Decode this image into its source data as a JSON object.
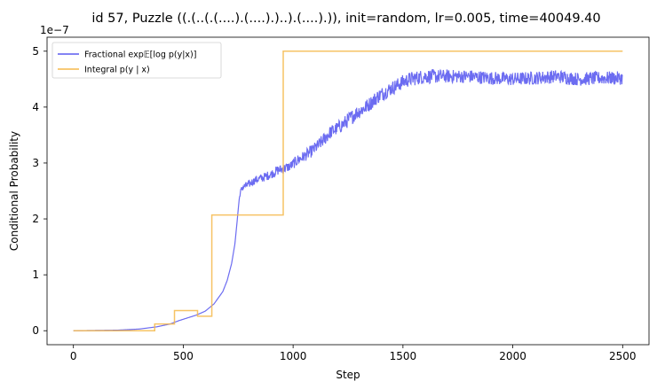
{
  "chart_data": {
    "type": "line",
    "title": "id 57, Puzzle ((.(..(.(....).(....).)..).(....).)), init=random, lr=0.005, time=40049.40",
    "xlabel": "Step",
    "ylabel": "Conditional Probability",
    "y_offset_label": "1e−7",
    "xlim": [
      -120,
      2620
    ],
    "ylim": [
      -0.25,
      5.25
    ],
    "x_ticks": [
      0,
      500,
      1000,
      1500,
      2000,
      2500
    ],
    "x_tick_labels": [
      "0",
      "500",
      "1000",
      "1500",
      "2000",
      "2500"
    ],
    "y_ticks": [
      0,
      1,
      2,
      3,
      4,
      5
    ],
    "y_tick_labels": [
      "0",
      "1",
      "2",
      "3",
      "4",
      "5"
    ],
    "grid": false,
    "legend_position": "top-left",
    "series": [
      {
        "name": "Fractional exp𝔼[log p(y|x)]",
        "color": "#5c5cf0",
        "style": "noisy",
        "x": [
          0,
          200,
          300,
          380,
          440,
          480,
          520,
          560,
          600,
          640,
          680,
          700,
          720,
          735,
          745,
          752,
          758,
          765,
          775,
          790,
          810,
          830,
          850,
          870,
          900,
          930,
          960,
          990,
          1020,
          1050,
          1080,
          1110,
          1140,
          1170,
          1200,
          1230,
          1260,
          1290,
          1320,
          1350,
          1380,
          1410,
          1440,
          1470,
          1500,
          1530,
          1560,
          1600,
          1700,
          1800,
          1900,
          2000,
          2100,
          2200,
          2300,
          2400,
          2500
        ],
        "y": [
          0.0,
          0.01,
          0.03,
          0.07,
          0.12,
          0.18,
          0.23,
          0.28,
          0.35,
          0.48,
          0.7,
          0.9,
          1.2,
          1.55,
          1.95,
          2.25,
          2.45,
          2.52,
          2.58,
          2.6,
          2.65,
          2.7,
          2.72,
          2.75,
          2.8,
          2.87,
          2.9,
          2.95,
          3.05,
          3.12,
          3.2,
          3.3,
          3.42,
          3.55,
          3.62,
          3.7,
          3.8,
          3.9,
          3.97,
          4.06,
          4.17,
          4.25,
          4.32,
          4.38,
          4.45,
          4.5,
          4.52,
          4.55,
          4.55,
          4.55,
          4.52,
          4.5,
          4.52,
          4.55,
          4.5,
          4.52,
          4.52
        ],
        "noise": [
          0,
          0,
          0,
          0,
          0,
          0,
          0,
          0,
          0,
          0,
          0,
          0,
          0,
          0,
          0,
          0.03,
          0.05,
          0.06,
          0.06,
          0.07,
          0.07,
          0.07,
          0.08,
          0.08,
          0.08,
          0.09,
          0.09,
          0.09,
          0.1,
          0.1,
          0.11,
          0.11,
          0.12,
          0.12,
          0.12,
          0.13,
          0.13,
          0.13,
          0.13,
          0.13,
          0.13,
          0.13,
          0.13,
          0.13,
          0.13,
          0.13,
          0.13,
          0.13,
          0.12,
          0.12,
          0.12,
          0.12,
          0.12,
          0.12,
          0.12,
          0.12,
          0.12
        ]
      },
      {
        "name": "Integral p(y | x)",
        "color": "#f5b94a",
        "style": "step",
        "x": [
          0,
          370,
          460,
          565,
          630,
          955,
          2500
        ],
        "y": [
          0.0,
          0.12,
          0.36,
          0.26,
          2.07,
          5.0,
          5.0
        ]
      }
    ]
  }
}
